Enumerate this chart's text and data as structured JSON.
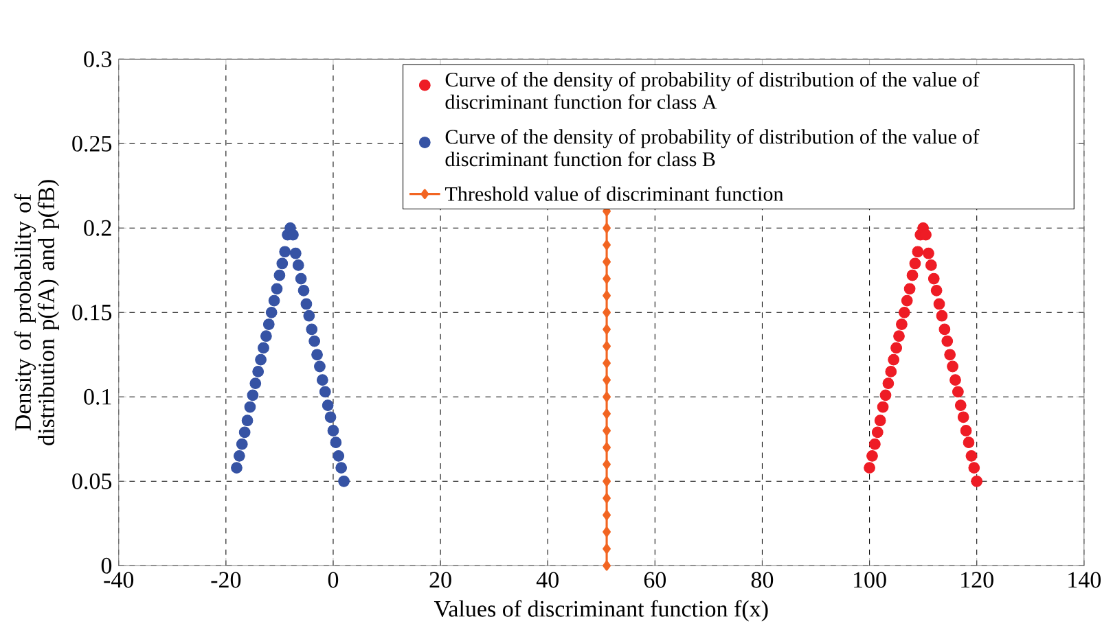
{
  "chart_data": {
    "type": "scatter",
    "xlabel": "Values of discriminant function f(x)",
    "ylabel": "Density of probability of distribution p(fA) and p(fB)",
    "xlim": [
      -40,
      140
    ],
    "xticks": [
      -40,
      -20,
      0,
      20,
      40,
      60,
      80,
      100,
      120,
      140
    ],
    "ylim": [
      0,
      0.3
    ],
    "yticks": [
      0,
      0.05,
      0.1,
      0.15,
      0.2,
      0.25,
      0.3
    ],
    "grid": true,
    "legend": "top right",
    "series": [
      {
        "name": "Curve of the density of probability of distribution of the value of discriminant function for class A",
        "marker": "circle",
        "color": "#ee1c25",
        "x": [
          100,
          100.5,
          101,
          101.5,
          102,
          102.5,
          103,
          103.5,
          104,
          104.5,
          105,
          105.5,
          106,
          106.5,
          107,
          107.5,
          108,
          108.5,
          109,
          109.5,
          110,
          110.5,
          111,
          111.5,
          112,
          112.5,
          113,
          113.5,
          114,
          114.5,
          115,
          115.5,
          116,
          116.5,
          117,
          117.5,
          118,
          118.5,
          119,
          119.5,
          120
        ],
        "values": [
          0.058,
          0.065,
          0.072,
          0.079,
          0.086,
          0.094,
          0.101,
          0.108,
          0.115,
          0.122,
          0.129,
          0.136,
          0.143,
          0.15,
          0.157,
          0.164,
          0.172,
          0.179,
          0.186,
          0.196,
          0.2,
          0.196,
          0.185,
          0.178,
          0.17,
          0.163,
          0.155,
          0.148,
          0.14,
          0.133,
          0.125,
          0.118,
          0.11,
          0.103,
          0.095,
          0.088,
          0.08,
          0.073,
          0.065,
          0.058,
          0.05
        ]
      },
      {
        "name": "Curve of the density of probability of distribution of the value of discriminant function for class B",
        "marker": "circle",
        "color": "#3653a4",
        "x": [
          -18,
          -17.5,
          -17,
          -16.5,
          -16,
          -15.5,
          -15,
          -14.5,
          -14,
          -13.5,
          -13,
          -12.5,
          -12,
          -11.5,
          -11,
          -10.5,
          -10,
          -9.5,
          -9,
          -8.5,
          -8,
          -7.5,
          -7,
          -6.5,
          -6,
          -5.5,
          -5,
          -4.5,
          -4,
          -3.5,
          -3,
          -2.5,
          -2,
          -1.5,
          -1,
          -0.5,
          0,
          0.5,
          1,
          1.5,
          2
        ],
        "values": [
          0.058,
          0.065,
          0.072,
          0.079,
          0.086,
          0.094,
          0.101,
          0.108,
          0.115,
          0.122,
          0.129,
          0.136,
          0.143,
          0.15,
          0.157,
          0.164,
          0.172,
          0.179,
          0.186,
          0.196,
          0.2,
          0.196,
          0.185,
          0.178,
          0.17,
          0.163,
          0.155,
          0.148,
          0.14,
          0.133,
          0.125,
          0.118,
          0.11,
          0.103,
          0.095,
          0.088,
          0.08,
          0.073,
          0.065,
          0.058,
          0.05
        ]
      },
      {
        "name": "Threshold value of discriminant function",
        "type": "line",
        "marker": "diamond",
        "line_style": "solid",
        "color": "#f26522",
        "x": [
          51,
          51,
          51,
          51,
          51,
          51,
          51,
          51,
          51,
          51,
          51,
          51,
          51,
          51,
          51,
          51,
          51,
          51,
          51,
          51,
          51,
          51
        ],
        "values": [
          0,
          0.01,
          0.02,
          0.03,
          0.04,
          0.05,
          0.06,
          0.07,
          0.08,
          0.09,
          0.1,
          0.11,
          0.12,
          0.13,
          0.14,
          0.15,
          0.16,
          0.17,
          0.18,
          0.19,
          0.2,
          0.21
        ]
      }
    ]
  }
}
